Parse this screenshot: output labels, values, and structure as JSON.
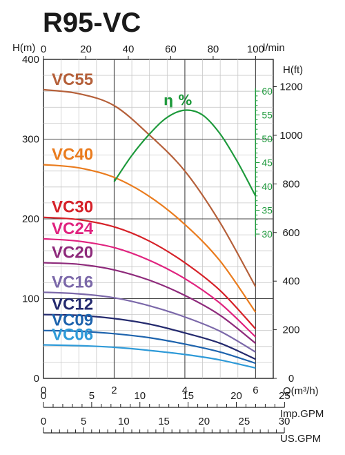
{
  "title": "R95-VC",
  "chart_data": {
    "type": "line",
    "title": "R95-VC",
    "x_axis": {
      "label": "Q(m³/h)",
      "range": [
        0,
        6.5
      ],
      "ticks": [
        0,
        2,
        4,
        6
      ]
    },
    "x_top_axis": {
      "label": "l/min",
      "ticks": [
        0,
        20,
        40,
        60,
        80,
        100
      ]
    },
    "y_axis": {
      "label": "H(m)",
      "range": [
        0,
        400
      ],
      "ticks": [
        0,
        100,
        200,
        300,
        400
      ]
    },
    "y_right_axis": {
      "label": "H(ft)",
      "ticks": [
        0,
        200,
        400,
        600,
        800,
        1000,
        1200
      ]
    },
    "efficiency_axis": {
      "label": "η %",
      "ticks": [
        30,
        35,
        40,
        45,
        50,
        55,
        60
      ],
      "color": "#1e9a3c"
    },
    "imp_gpm_axis": {
      "label": "Imp.GPM",
      "ticks": [
        0,
        5,
        10,
        15,
        20,
        25
      ]
    },
    "us_gpm_axis": {
      "label": "US.GPM",
      "ticks": [
        0,
        5,
        10,
        15,
        20,
        25,
        30
      ]
    },
    "x": [
      0,
      1,
      2,
      3,
      4,
      5,
      6
    ],
    "series": [
      {
        "name": "VC55",
        "color": "#b5603a",
        "values": [
          362,
          357,
          342,
          305,
          260,
          195,
          115
        ]
      },
      {
        "name": "VC40",
        "color": "#ea7c1e",
        "values": [
          268,
          264,
          252,
          228,
          193,
          147,
          83
        ]
      },
      {
        "name": "VC30",
        "color": "#d62128",
        "values": [
          202,
          199,
          190,
          172,
          145,
          110,
          62
        ]
      },
      {
        "name": "VC24",
        "color": "#e0237f",
        "values": [
          175,
          172,
          164,
          148,
          125,
          94,
          52
        ]
      },
      {
        "name": "VC20",
        "color": "#8e2a7b",
        "values": [
          145,
          143,
          136,
          123,
          104,
          79,
          44
        ]
      },
      {
        "name": "VC16",
        "color": "#7b68a9",
        "values": [
          108,
          106,
          101,
          91,
          77,
          59,
          33
        ]
      },
      {
        "name": "VC12",
        "color": "#242a6e",
        "values": [
          80,
          79,
          75,
          68,
          57,
          44,
          24
        ]
      },
      {
        "name": "VC09",
        "color": "#1d63ad",
        "values": [
          60,
          59,
          56,
          51,
          43,
          33,
          19
        ]
      },
      {
        "name": "VC06",
        "color": "#2e9ad8",
        "values": [
          42,
          41,
          39,
          35,
          30,
          23,
          13
        ]
      }
    ],
    "efficiency": {
      "x": [
        2.0,
        2.5,
        3.0,
        3.5,
        4.0,
        4.5,
        5.0,
        5.5,
        6.0
      ],
      "values": [
        41,
        46.5,
        51,
        54.5,
        56,
        55,
        51,
        45,
        38
      ],
      "color": "#1e9a3c"
    },
    "grid": true
  }
}
